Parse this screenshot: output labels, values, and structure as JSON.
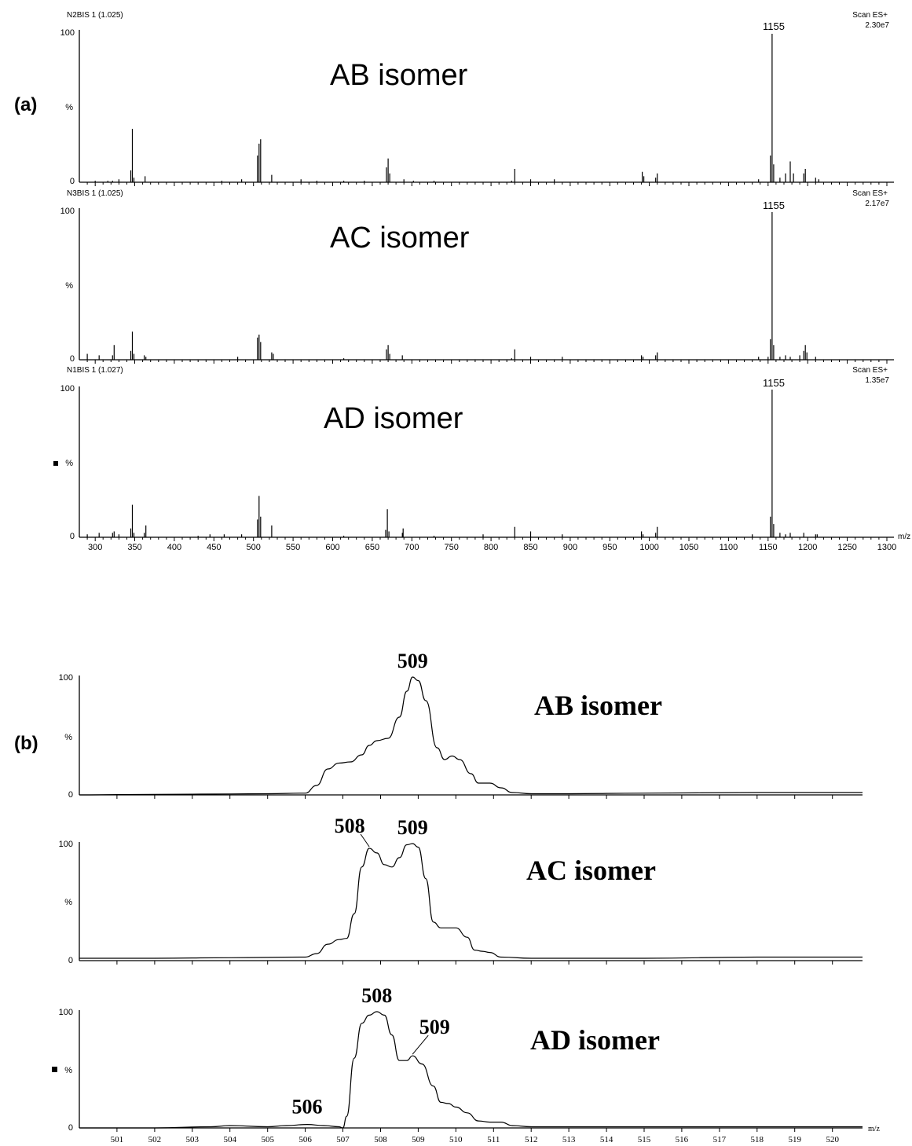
{
  "chart_data": [
    {
      "type": "line",
      "panel_label": "(a)",
      "x_min": 280,
      "x_max": 1300,
      "x_ticks": [
        300,
        350,
        400,
        450,
        500,
        550,
        600,
        650,
        700,
        750,
        800,
        850,
        900,
        950,
        1000,
        1050,
        1100,
        1150,
        1200,
        1250,
        1300
      ],
      "xlabel": "m/z",
      "y_top_label": "100",
      "y_mid_label": "%",
      "y_zero_label": "0",
      "ylim": [
        0,
        100
      ],
      "spectra": [
        {
          "name": "AB isomer",
          "header_left": "N2BIS 1 (1.025)",
          "header_right_1": "Scan ES+",
          "header_right_2": "2.30e7",
          "peak_label": "1155",
          "peaks": [
            [
              300,
              1
            ],
            [
              316,
              1
            ],
            [
              322,
              1
            ],
            [
              330,
              2
            ],
            [
              345,
              8
            ],
            [
              347,
              36
            ],
            [
              349,
              3
            ],
            [
              363,
              4
            ],
            [
              460,
              1
            ],
            [
              485,
              2
            ],
            [
              505,
              18
            ],
            [
              507,
              26
            ],
            [
              509,
              29
            ],
            [
              523,
              5
            ],
            [
              560,
              2
            ],
            [
              580,
              1
            ],
            [
              614,
              1
            ],
            [
              640,
              1
            ],
            [
              668,
              10
            ],
            [
              670,
              16
            ],
            [
              672,
              6
            ],
            [
              690,
              2
            ],
            [
              702,
              1
            ],
            [
              728,
              1
            ],
            [
              826,
              1
            ],
            [
              830,
              9
            ],
            [
              850,
              2
            ],
            [
              880,
              2
            ],
            [
              991,
              7
            ],
            [
              993,
              4
            ],
            [
              1008,
              3
            ],
            [
              1010,
              6
            ],
            [
              1138,
              2
            ],
            [
              1153,
              18
            ],
            [
              1155,
              100
            ],
            [
              1157,
              12
            ],
            [
              1165,
              3
            ],
            [
              1172,
              6
            ],
            [
              1178,
              14
            ],
            [
              1182,
              6
            ],
            [
              1195,
              6
            ],
            [
              1197,
              9
            ],
            [
              1210,
              3
            ],
            [
              1214,
              2
            ]
          ]
        },
        {
          "name": "AC isomer",
          "header_left": "N3BIS 1 (1.025)",
          "header_right_1": "Scan ES+",
          "header_right_2": "2.17e7",
          "peak_label": "1155",
          "peaks": [
            [
              290,
              4
            ],
            [
              305,
              3
            ],
            [
              322,
              3
            ],
            [
              324,
              10
            ],
            [
              345,
              6
            ],
            [
              347,
              19
            ],
            [
              349,
              4
            ],
            [
              362,
              3
            ],
            [
              364,
              2
            ],
            [
              480,
              2
            ],
            [
              505,
              15
            ],
            [
              507,
              17
            ],
            [
              509,
              12
            ],
            [
              523,
              5
            ],
            [
              525,
              4
            ],
            [
              614,
              1
            ],
            [
              668,
              7
            ],
            [
              670,
              10
            ],
            [
              672,
              4
            ],
            [
              688,
              3
            ],
            [
              826,
              1
            ],
            [
              830,
              7
            ],
            [
              850,
              2
            ],
            [
              890,
              2
            ],
            [
              990,
              3
            ],
            [
              992,
              2
            ],
            [
              1008,
              3
            ],
            [
              1010,
              5
            ],
            [
              1138,
              2
            ],
            [
              1150,
              2
            ],
            [
              1153,
              14
            ],
            [
              1155,
              100
            ],
            [
              1157,
              10
            ],
            [
              1165,
              2
            ],
            [
              1172,
              3
            ],
            [
              1178,
              2
            ],
            [
              1190,
              3
            ],
            [
              1195,
              6
            ],
            [
              1197,
              10
            ],
            [
              1199,
              5
            ],
            [
              1210,
              2
            ]
          ]
        },
        {
          "name": "AD isomer",
          "header_left": "N1BIS 1 (1.027)",
          "header_right_1": "Scan ES+",
          "header_right_2": "1.35e7",
          "peak_label": "1155",
          "peaks": [
            [
              290,
              2
            ],
            [
              305,
              3
            ],
            [
              322,
              3
            ],
            [
              324,
              4
            ],
            [
              330,
              2
            ],
            [
              345,
              6
            ],
            [
              347,
              22
            ],
            [
              349,
              3
            ],
            [
              362,
              3
            ],
            [
              364,
              8
            ],
            [
              430,
              1
            ],
            [
              445,
              2
            ],
            [
              463,
              2
            ],
            [
              485,
              2
            ],
            [
              505,
              12
            ],
            [
              507,
              28
            ],
            [
              509,
              14
            ],
            [
              523,
              8
            ],
            [
              614,
              1
            ],
            [
              667,
              5
            ],
            [
              669,
              19
            ],
            [
              671,
              4
            ],
            [
              688,
              3
            ],
            [
              689,
              6
            ],
            [
              728,
              1
            ],
            [
              790,
              2
            ],
            [
              830,
              7
            ],
            [
              850,
              4
            ],
            [
              890,
              2
            ],
            [
              990,
              4
            ],
            [
              992,
              2
            ],
            [
              1008,
              3
            ],
            [
              1010,
              7
            ],
            [
              1130,
              2
            ],
            [
              1153,
              14
            ],
            [
              1155,
              100
            ],
            [
              1157,
              9
            ],
            [
              1165,
              3
            ],
            [
              1172,
              2
            ],
            [
              1178,
              3
            ],
            [
              1195,
              3
            ],
            [
              1210,
              2
            ],
            [
              1212,
              2
            ]
          ]
        }
      ]
    },
    {
      "type": "line",
      "panel_label": "(b)",
      "x_min": 500,
      "x_max": 520.8,
      "x_ticks": [
        501,
        502,
        503,
        504,
        505,
        506,
        507,
        508,
        509,
        510,
        511,
        512,
        513,
        514,
        515,
        516,
        517,
        518,
        519,
        520
      ],
      "xlabel": "m/z",
      "y_top_label": "100",
      "y_mid_label": "%",
      "y_zero_label": "0",
      "ylim": [
        0,
        100
      ],
      "spectra": [
        {
          "name": "AB isomer",
          "peak_labels": [
            {
              "text": "509",
              "x": 508.85,
              "y": 100
            }
          ],
          "profile": [
            [
              500,
              0
            ],
            [
              502,
              0.5
            ],
            [
              504,
              0.8
            ],
            [
              505,
              1
            ],
            [
              506,
              1.5
            ],
            [
              506.3,
              8
            ],
            [
              506.6,
              22
            ],
            [
              506.9,
              27
            ],
            [
              507.2,
              28
            ],
            [
              507.5,
              34
            ],
            [
              507.7,
              42
            ],
            [
              507.9,
              46
            ],
            [
              508.2,
              48
            ],
            [
              508.5,
              66
            ],
            [
              508.7,
              88
            ],
            [
              508.85,
              100
            ],
            [
              509.0,
              97
            ],
            [
              509.2,
              80
            ],
            [
              509.5,
              40
            ],
            [
              509.7,
              30
            ],
            [
              509.9,
              33
            ],
            [
              510.1,
              30
            ],
            [
              510.4,
              18
            ],
            [
              510.6,
              10
            ],
            [
              510.9,
              10
            ],
            [
              511.2,
              6
            ],
            [
              511.5,
              2
            ],
            [
              512,
              1
            ],
            [
              513,
              1
            ],
            [
              515,
              1.5
            ],
            [
              518,
              2
            ],
            [
              520,
              2
            ],
            [
              520.8,
              2
            ]
          ]
        },
        {
          "name": "AC isomer",
          "peak_labels": [
            {
              "text": "508",
              "x": 507.7,
              "y": 96
            },
            {
              "text": "509",
              "x": 508.85,
              "y": 100
            }
          ],
          "profile": [
            [
              500,
              2
            ],
            [
              502,
              2
            ],
            [
              504,
              2.5
            ],
            [
              506,
              3
            ],
            [
              506.3,
              6
            ],
            [
              506.6,
              14
            ],
            [
              506.9,
              18
            ],
            [
              507.1,
              19
            ],
            [
              507.3,
              40
            ],
            [
              507.5,
              80
            ],
            [
              507.7,
              96
            ],
            [
              507.9,
              92
            ],
            [
              508.1,
              82
            ],
            [
              508.3,
              80
            ],
            [
              508.5,
              88
            ],
            [
              508.7,
              99
            ],
            [
              508.85,
              100
            ],
            [
              509.0,
              97
            ],
            [
              509.2,
              70
            ],
            [
              509.4,
              33
            ],
            [
              509.6,
              28
            ],
            [
              510.0,
              28
            ],
            [
              510.3,
              20
            ],
            [
              510.5,
              9
            ],
            [
              510.7,
              8
            ],
            [
              510.9,
              7
            ],
            [
              511.2,
              3
            ],
            [
              512,
              2
            ],
            [
              515,
              2
            ],
            [
              518,
              3
            ],
            [
              520.8,
              3
            ]
          ]
        },
        {
          "name": "AD isomer",
          "peak_labels": [
            {
              "text": "506",
              "x": 506.05,
              "y": 3
            },
            {
              "text": "508",
              "x": 507.9,
              "y": 100
            },
            {
              "text": "509",
              "x": 508.85,
              "y": 62
            }
          ],
          "profile": [
            [
              500,
              0
            ],
            [
              502,
              0
            ],
            [
              503.5,
              1
            ],
            [
              504,
              2
            ],
            [
              505,
              1
            ],
            [
              505.5,
              2
            ],
            [
              506.05,
              3
            ],
            [
              506.5,
              2
            ],
            [
              506.9,
              1
            ],
            [
              507.0,
              0
            ],
            [
              507.1,
              10
            ],
            [
              507.3,
              60
            ],
            [
              507.5,
              90
            ],
            [
              507.7,
              97
            ],
            [
              507.9,
              100
            ],
            [
              508.1,
              97
            ],
            [
              508.3,
              80
            ],
            [
              508.5,
              58
            ],
            [
              508.7,
              58
            ],
            [
              508.85,
              62
            ],
            [
              509.1,
              55
            ],
            [
              509.4,
              36
            ],
            [
              509.6,
              22
            ],
            [
              509.8,
              21
            ],
            [
              510.0,
              18
            ],
            [
              510.3,
              13
            ],
            [
              510.6,
              6
            ],
            [
              510.9,
              5
            ],
            [
              511.2,
              5
            ],
            [
              511.5,
              2
            ],
            [
              512,
              1
            ],
            [
              514,
              1
            ],
            [
              516,
              1
            ],
            [
              518,
              1
            ],
            [
              520.8,
              1
            ]
          ]
        }
      ]
    }
  ]
}
